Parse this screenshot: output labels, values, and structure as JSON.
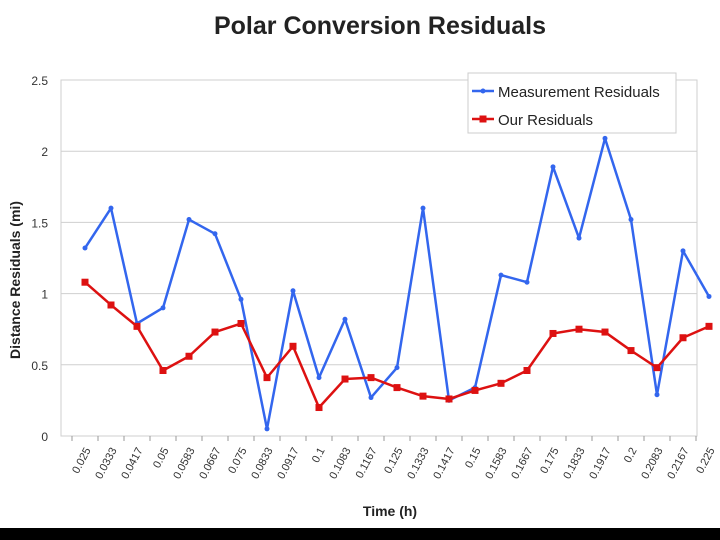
{
  "chart_data": {
    "type": "line",
    "title": "Polar Conversion Residuals",
    "xlabel": "Time (h)",
    "ylabel": "Distance Residuals (mi)",
    "ylim": [
      0,
      2.5
    ],
    "yticks": [
      "0",
      "0.5",
      "1",
      "1.5",
      "2",
      "2.5"
    ],
    "categories": [
      "0.025",
      "0.0333",
      "0.0417",
      "0.05",
      "0.0583",
      "0.0667",
      "0.075",
      "0.0833",
      "0.0917",
      "0.1",
      "0.1083",
      "0.1167",
      "0.125",
      "0.1333",
      "0.1417",
      "0.15",
      "0.1583",
      "0.1667",
      "0.175",
      "0.1833",
      "0.1917",
      "0.2",
      "0.2083",
      "0.2167",
      "0.225"
    ],
    "grid": true,
    "legend": "top-right",
    "series": [
      {
        "name": "Measurement Residuals",
        "color": "#3366ee",
        "marker": "circle",
        "values": [
          1.32,
          1.6,
          0.79,
          0.9,
          1.52,
          1.42,
          0.96,
          0.05,
          1.02,
          0.41,
          0.82,
          0.27,
          0.48,
          1.6,
          0.25,
          0.34,
          1.13,
          1.08,
          1.89,
          1.39,
          2.09,
          1.52,
          0.29,
          1.3,
          0.98
        ]
      },
      {
        "name": "Our Residuals",
        "color": "#dd1111",
        "marker": "square",
        "values": [
          1.08,
          0.92,
          0.77,
          0.46,
          0.56,
          0.73,
          0.79,
          0.41,
          0.63,
          0.2,
          0.4,
          0.41,
          0.34,
          0.28,
          0.26,
          0.32,
          0.37,
          0.46,
          0.72,
          0.75,
          0.73,
          0.6,
          0.48,
          0.69,
          0.77
        ]
      }
    ]
  }
}
